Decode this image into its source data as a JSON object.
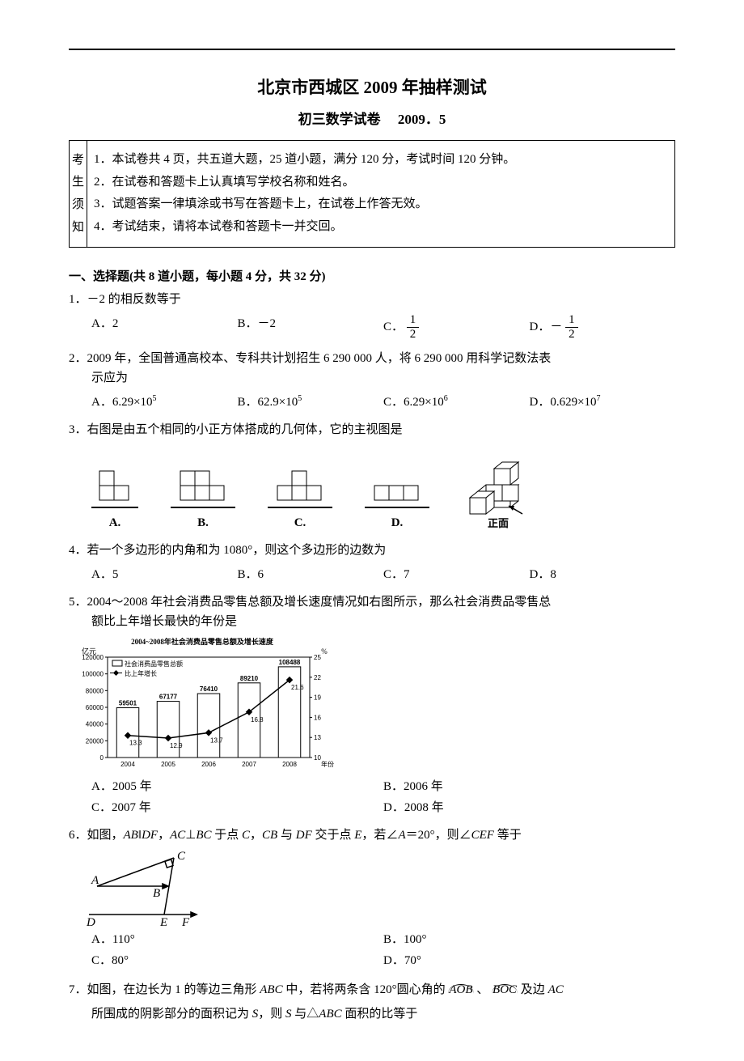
{
  "header": {
    "title": "北京市西城区 2009 年抽样测试",
    "subtitle_left": "初三数学试卷",
    "subtitle_right": "2009．5"
  },
  "notice": {
    "left_chars": [
      "考",
      "生",
      "须",
      "知"
    ],
    "items": [
      "1．本试卷共 4 页，共五道大题，25 道小题，满分 120 分，考试时间 120 分钟。",
      "2．在试卷和答题卡上认真填写学校名称和姓名。",
      "3．试题答案一律填涂或书写在答题卡上，在试卷上作答无效。",
      "4．考试结束，请将本试卷和答题卡一并交回。"
    ]
  },
  "section1_title": "一、选择题(共 8 道小题，每小题 4 分，共 32 分)",
  "q1": {
    "stem": "1．－2 的相反数等于",
    "optA": "A．2",
    "optB": "B．－2",
    "optC_prefix": "C．",
    "optC_num": "1",
    "optC_den": "2",
    "optD_prefix": "D．－",
    "optD_num": "1",
    "optD_den": "2"
  },
  "q2": {
    "stem_l1": "2．2009 年，全国普通高校本、专科共计划招生 6 290 000 人，将 6 290 000 用科学记数法表",
    "stem_l2": "示应为",
    "optA": "A．6.29×10",
    "optA_sup": "5",
    "optB": "B．62.9×10",
    "optB_sup": "5",
    "optC": "C．6.29×10",
    "optC_sup": "6",
    "optD": "D．0.629×10",
    "optD_sup": "7"
  },
  "q3": {
    "stem": "3．右图是由五个相同的小正方体搭成的几何体，它的主视图是",
    "labels": {
      "A": "A.",
      "B": "B.",
      "C": "C.",
      "D": "D."
    },
    "side_label": "正面",
    "colors": {
      "stroke": "#000000",
      "fill_solid": "#ffffff",
      "fill_iso": "#ffffff"
    }
  },
  "q4": {
    "stem": "4．若一个多边形的内角和为 1080°，则这个多边形的边数为",
    "optA": "A．5",
    "optB": "B．6",
    "optC": "C．7",
    "optD": "D．8"
  },
  "q5": {
    "stem_l1": "5．2004～2008 年社会消费品零售总额及增长速度情况如右图所示，那么社会消费品零售总",
    "stem_l2": "额比上年增长最快的年份是",
    "chart": {
      "title": "2004~2008年社会消费品零售总额及增长速度",
      "y_left_label": "亿元",
      "y_right_label": "%",
      "legend": [
        "社会消费品零售总额",
        "比上年增长"
      ],
      "x_label": "年份",
      "categories": [
        "2004",
        "2005",
        "2006",
        "2007",
        "2008"
      ],
      "bars": [
        59501,
        67177,
        76410,
        89210,
        108488
      ],
      "line": [
        13.3,
        12.9,
        13.7,
        16.8,
        21.6
      ],
      "y_left_ticks": [
        0,
        20000,
        40000,
        60000,
        80000,
        100000,
        120000
      ],
      "y_right_ticks": [
        10,
        13,
        16,
        19,
        22,
        25
      ],
      "bar_color": "#ffffff",
      "bar_stroke": "#000000",
      "line_color": "#000000",
      "marker": "diamond",
      "bg": "#ffffff",
      "font_size": 9
    },
    "optA": "A．2005 年",
    "optB": "B．2006 年",
    "optC": "C．2007 年",
    "optD": "D．2008 年"
  },
  "q6": {
    "stem_prefix": "6．如图，",
    "stem_mid1": "AB",
    "stem_par": "‖",
    "stem_mid2": "DF",
    "stem_comma1": "，",
    "stem_mid3": "AC",
    "stem_perp": "⊥",
    "stem_mid4": "BC",
    "stem_txt1": " 于点 ",
    "stem_C": "C",
    "stem_comma2": "，",
    "stem_mid5": "CB",
    "stem_txt2": " 与 ",
    "stem_mid6": "DF",
    "stem_txt3": " 交于点 ",
    "stem_E": "E",
    "stem_txt4": "，若∠",
    "stem_A": "A",
    "stem_txt5": "＝20°，则∠",
    "stem_CEF": "CEF",
    "stem_txt6": " 等于",
    "fig_labels": {
      "A": "A",
      "B": "B",
      "C": "C",
      "D": "D",
      "E": "E",
      "F": "F"
    },
    "optA": "A．110°",
    "optB": "B．100°",
    "optC": "C．80°",
    "optD": "D．70°"
  },
  "q7": {
    "line1_a": "7．如图，在边长为 1 的等边三角形 ",
    "line1_abc": "ABC",
    "line1_b": " 中，若将两条含 120°圆心角的",
    "arc1": "AOB",
    "line1_c": "、",
    "arc2": "BOC",
    "line1_d": "及边 ",
    "line1_ac": "AC",
    "line2_a": "所围成的阴影部分的面积记为 ",
    "line2_s": "S",
    "line2_b": "，则 ",
    "line2_s2": "S",
    "line2_c": " 与△",
    "line2_abc": "ABC",
    "line2_d": " 面积的比等于"
  }
}
